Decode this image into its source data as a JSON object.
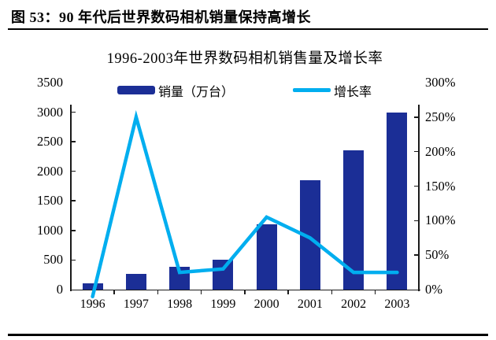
{
  "header": {
    "title": "图 53：90 年代后世界数码相机销量保持高增长"
  },
  "chart_data": {
    "type": "bar",
    "subtype": "combo-bar-line-dual-axis",
    "title": "1996-2003年世界数码相机销售量及增长率",
    "categories": [
      "1996",
      "1997",
      "1998",
      "1999",
      "2000",
      "2001",
      "2002",
      "2003"
    ],
    "series": [
      {
        "name": "销量（万台）",
        "type": "bar",
        "axis": "left",
        "color": "#1b2e96",
        "values": [
          100,
          270,
          380,
          500,
          1100,
          1850,
          2360,
          3000
        ]
      },
      {
        "name": "增长率",
        "type": "line",
        "axis": "right",
        "color": "#00aeef",
        "values_pct": [
          -10,
          250,
          25,
          30,
          105,
          75,
          25,
          25
        ]
      }
    ],
    "left_axis": {
      "min": 0,
      "max": 3500,
      "step": 500,
      "tick_labels": [
        "3500",
        "3000",
        "2500",
        "2000",
        "1500",
        "1000",
        "500",
        "0"
      ]
    },
    "right_axis": {
      "min_pct": 0,
      "max_pct": 300,
      "step_pct": 50,
      "tick_labels": [
        "300%",
        "250%",
        "200%",
        "150%",
        "100%",
        "50%",
        "0%"
      ]
    },
    "legend_position": "top-center-inside",
    "grid": false
  }
}
